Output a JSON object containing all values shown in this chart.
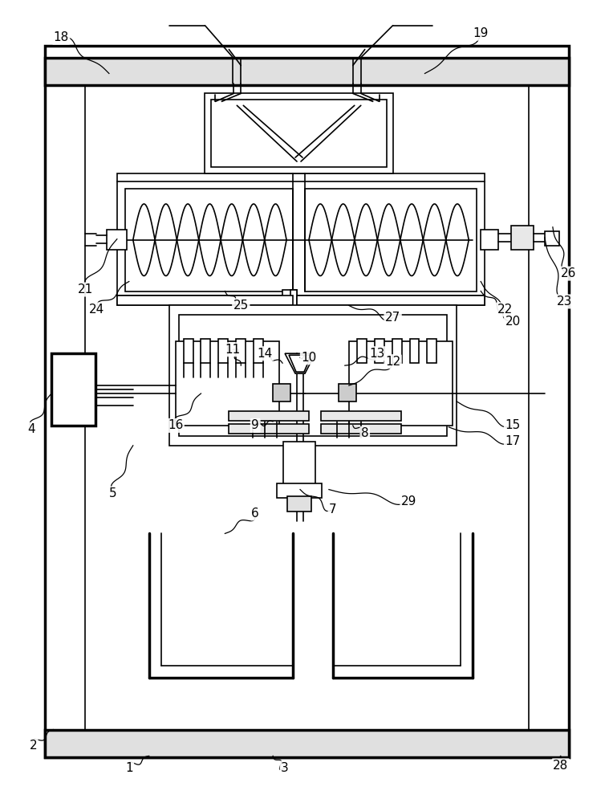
{
  "bg_color": "#ffffff",
  "lc": "#000000",
  "lw": 1.2,
  "tlw": 2.5,
  "fig_w": 7.64,
  "fig_h": 10.0
}
